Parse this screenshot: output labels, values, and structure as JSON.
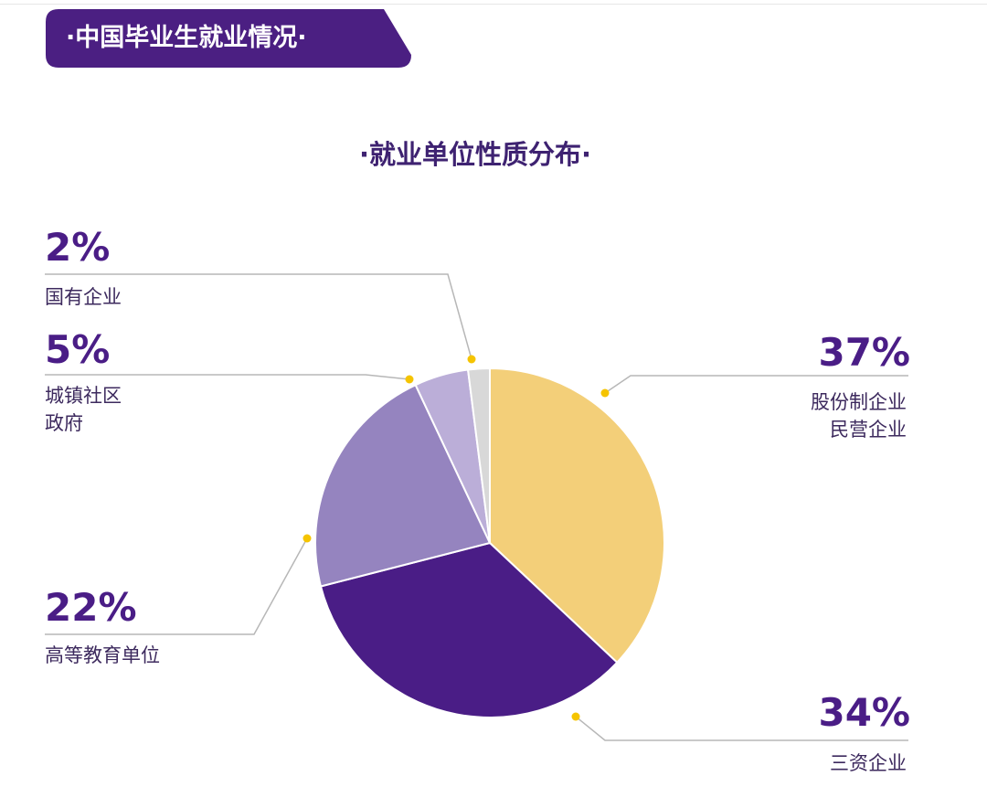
{
  "header": {
    "title": "·中国毕业生就业情况·"
  },
  "colors": {
    "banner": "#4b1f82",
    "accent_dot": "#f5c400",
    "leader_line": "#b7b7b7"
  },
  "chart_data": {
    "type": "pie",
    "title": "·就业单位性质分布·",
    "slices": [
      {
        "value": 37,
        "label": "37%",
        "category_lines": [
          "股份制企业",
          "民营企业"
        ],
        "color": "#f3cf79"
      },
      {
        "value": 34,
        "label": "34%",
        "category_lines": [
          "三资企业"
        ],
        "color": "#4a1d86"
      },
      {
        "value": 22,
        "label": "22%",
        "category_lines": [
          "高等教育单位"
        ],
        "color": "#9584bf"
      },
      {
        "value": 5,
        "label": "5%",
        "category_lines": [
          "城镇社区",
          "政府"
        ],
        "color": "#bbaed8"
      },
      {
        "value": 2,
        "label": "2%",
        "category_lines": [
          "国有企业"
        ],
        "color": "#d8d8d8"
      }
    ]
  }
}
